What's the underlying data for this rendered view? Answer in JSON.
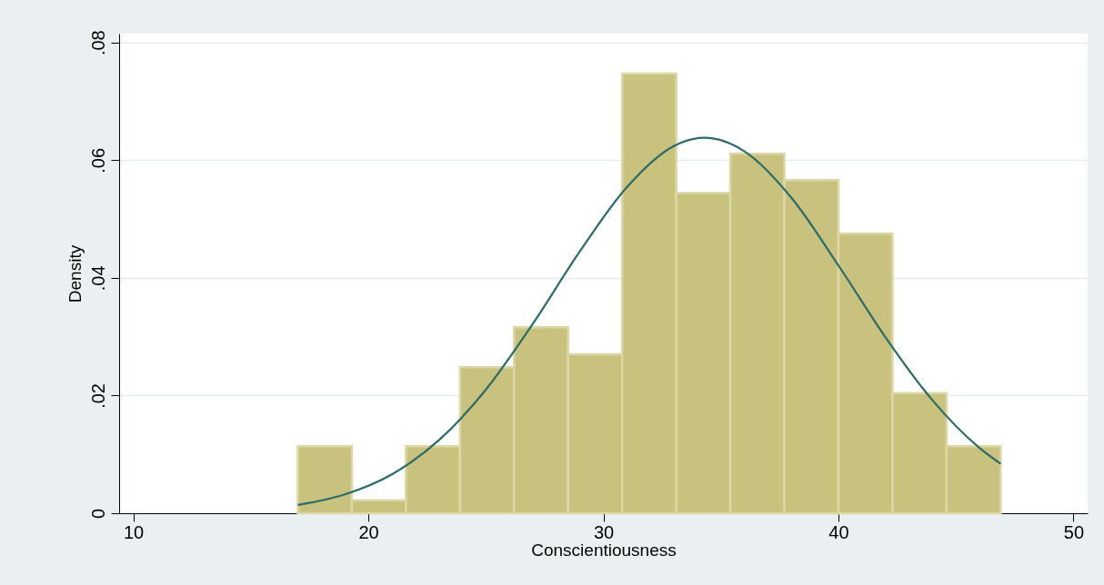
{
  "chart_data": {
    "type": "histogram",
    "xlabel": "Conscientiousness",
    "ylabel": "Density",
    "bins": [
      17,
      19.3,
      21.6,
      23.9,
      26.2,
      28.5,
      30.8,
      33.1,
      35.4,
      37.7,
      40,
      42.3,
      44.6,
      46.9
    ],
    "values": [
      0.0114,
      0.0022,
      0.0114,
      0.0248,
      0.0316,
      0.027,
      0.0747,
      0.0544,
      0.0611,
      0.0566,
      0.0475,
      0.0204,
      0.0114
    ],
    "color": "#c9c27f",
    "series": [
      {
        "type": "line",
        "color": "#2a6b67",
        "x": [
          17,
          19,
          21,
          23,
          25,
          27,
          29,
          31,
          33,
          34.3,
          36,
          38,
          40,
          42,
          44,
          46,
          46.9
        ],
        "values": [
          0.0014,
          0.0032,
          0.0066,
          0.0124,
          0.021,
          0.0322,
          0.0445,
          0.0554,
          0.0624,
          0.0638,
          0.0615,
          0.0536,
          0.0421,
          0.0299,
          0.0192,
          0.0111,
          0.0084
        ]
      }
    ],
    "xlim": [
      9.4,
      50.6
    ],
    "xticks": [
      10,
      20,
      30,
      40,
      50
    ],
    "ylim": [
      0,
      0.0815
    ],
    "yticks": [
      0,
      {
        "value": 0.02,
        "label": ".02"
      },
      {
        "value": 0.04,
        "label": ".04"
      },
      {
        "value": 0.06,
        "label": ".06"
      },
      {
        "value": 0.08,
        "label": ".08"
      }
    ],
    "grid": "y",
    "line_style": "solid",
    "marker": "none"
  }
}
